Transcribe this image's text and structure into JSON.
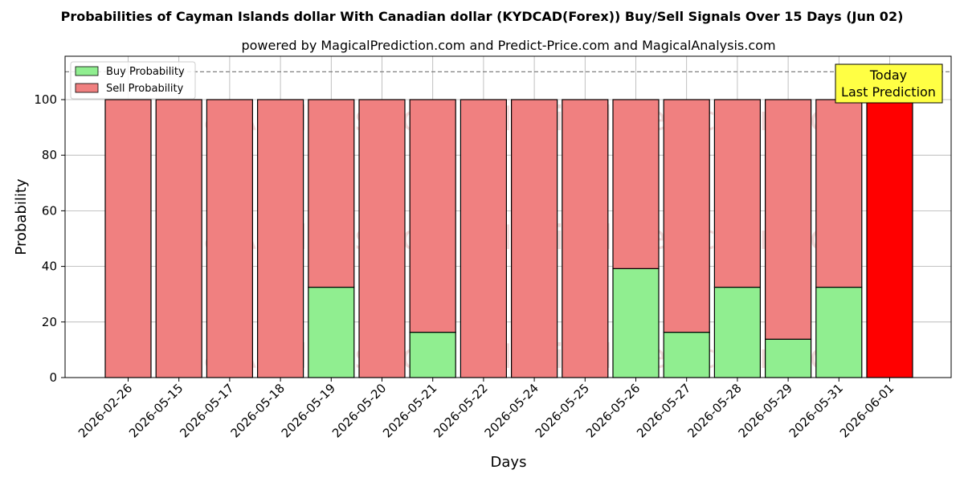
{
  "chart_data": {
    "type": "bar",
    "stacked": true,
    "title": "Probabilities of Cayman Islands dollar With Canadian dollar (KYDCAD(Forex)) Buy/Sell Signals Over 15 Days (Jun 02)",
    "subtitle": "powered by MagicalPrediction.com and Predict-Price.com and MagicalAnalysis.com",
    "xlabel": "Days",
    "ylabel": "Probability",
    "ylim": [
      0,
      115
    ],
    "yticks": [
      0,
      20,
      40,
      60,
      80,
      100
    ],
    "grid": true,
    "legend_position": "top-left",
    "reference_line": 110,
    "categories": [
      "2026-02-26",
      "2026-05-15",
      "2026-05-17",
      "2026-05-18",
      "2026-05-19",
      "2026-05-20",
      "2026-05-21",
      "2026-05-22",
      "2026-05-24",
      "2026-05-25",
      "2026-05-26",
      "2026-05-27",
      "2026-05-28",
      "2026-05-29",
      "2026-05-31",
      "2026-06-01"
    ],
    "series": [
      {
        "name": "Buy Probability",
        "color": "#90ee90",
        "values": [
          0,
          0,
          0,
          0,
          32.5,
          0,
          16.3,
          0,
          0,
          0,
          39.2,
          16.3,
          32.5,
          13.8,
          32.5,
          0
        ]
      },
      {
        "name": "Sell Probability",
        "color": "#f08080",
        "values": [
          100,
          100,
          100,
          100,
          67.5,
          100,
          83.7,
          100,
          100,
          100,
          60.8,
          83.7,
          67.5,
          86.2,
          67.5,
          100
        ]
      }
    ],
    "highlight": {
      "index": 15,
      "color": "#ff0000"
    },
    "annotation": {
      "lines": [
        "Today",
        "Last Prediction"
      ],
      "color": "#ffff44"
    },
    "watermarks": [
      "MagicalAnalysis.com",
      "MagicalPrediction.com"
    ]
  }
}
